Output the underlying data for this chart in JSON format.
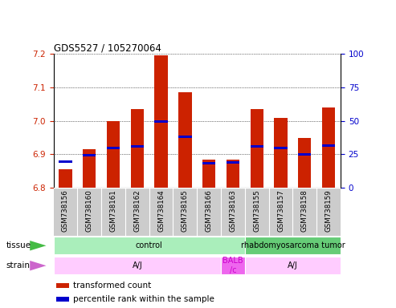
{
  "title": "GDS5527 / 105270064",
  "samples": [
    "GSM738156",
    "GSM738160",
    "GSM738161",
    "GSM738162",
    "GSM738164",
    "GSM738165",
    "GSM738166",
    "GSM738163",
    "GSM738155",
    "GSM738157",
    "GSM738158",
    "GSM738159"
  ],
  "transformed_count": [
    6.855,
    6.915,
    7.0,
    7.035,
    7.195,
    7.085,
    6.885,
    6.885,
    7.035,
    7.01,
    6.95,
    7.04
  ],
  "percentile_y": [
    6.874,
    6.895,
    6.916,
    6.92,
    6.995,
    6.95,
    6.87,
    6.873,
    6.92,
    6.916,
    6.897,
    6.922
  ],
  "ylim_left": [
    6.8,
    7.2
  ],
  "ylim_right": [
    0,
    100
  ],
  "yticks_left": [
    6.8,
    6.9,
    7.0,
    7.1,
    7.2
  ],
  "yticks_right": [
    0,
    25,
    50,
    75,
    100
  ],
  "bar_color": "#cc2200",
  "percentile_color": "#0000cc",
  "bar_bottom": 6.8,
  "tissue_spans": [
    {
      "text": "control",
      "start": 0,
      "end": 7,
      "color": "#aaeebb"
    },
    {
      "text": "rhabdomyosarcoma tumor",
      "start": 8,
      "end": 11,
      "color": "#66cc77"
    }
  ],
  "strain_spans": [
    {
      "text": "A/J",
      "start": 0,
      "end": 6,
      "color": "#ffccff"
    },
    {
      "text": "BALB\n/c",
      "start": 7,
      "end": 7,
      "color": "#ee66ee"
    },
    {
      "text": "A/J",
      "start": 8,
      "end": 11,
      "color": "#ffccff"
    }
  ],
  "tissue_label": "tissue",
  "strain_label": "strain",
  "legend_red": "transformed count",
  "legend_blue": "percentile rank within the sample",
  "tick_area_color": "#cccccc"
}
